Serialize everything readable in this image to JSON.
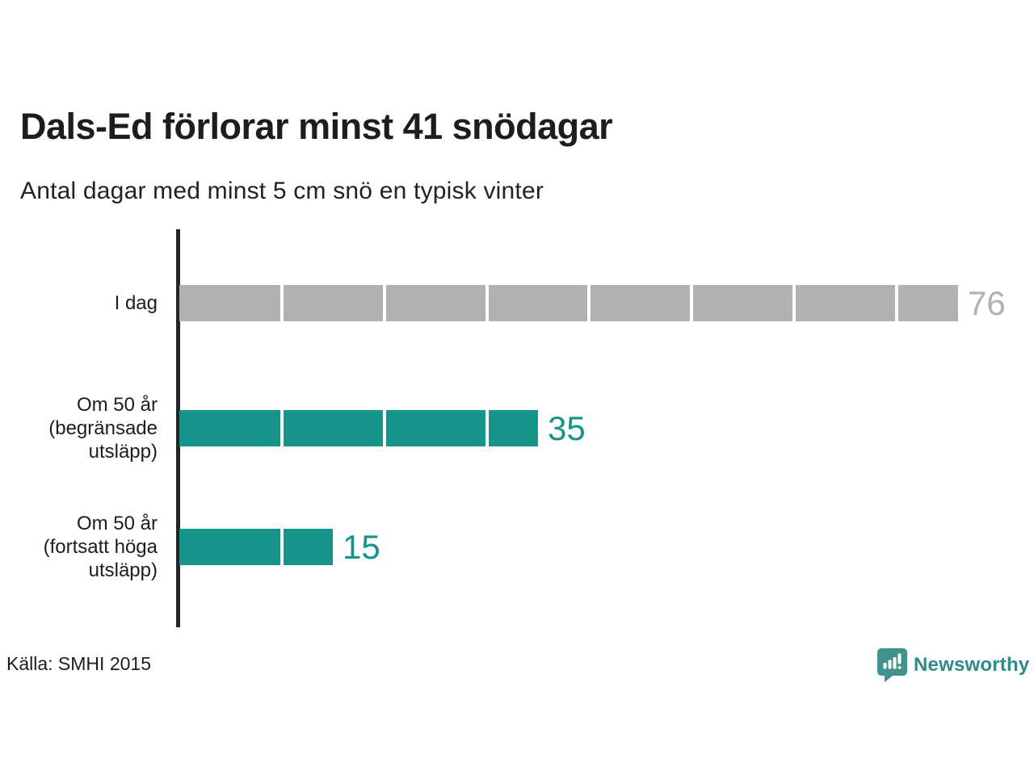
{
  "title": "Dals-Ed förlorar minst 41 snödagar",
  "subtitle": "Antal dagar med minst 5 cm snö en typisk vinter",
  "source": "Källa: SMHI 2015",
  "branding": {
    "name": "Newsworthy",
    "icon": "newsworthy-speech-bubble-bar-chart-icon",
    "icon_color": "#3f938c",
    "text_color": "#2e8b85"
  },
  "colors": {
    "bar_gray": "#b1b1b1",
    "bar_teal": "#17948a",
    "axis": "#252525",
    "text_dark": "#1d1d1d",
    "segment_divider": "#ffffff"
  },
  "chart_data": {
    "type": "bar",
    "orientation": "horizontal",
    "title": "Dals-Ed förlorar minst 41 snödagar",
    "subtitle": "Antal dagar med minst 5 cm snö en typisk vinter",
    "xlabel": "",
    "ylabel": "",
    "xlim": [
      0,
      76
    ],
    "grid": false,
    "legend": "none",
    "segment_interval": 10,
    "categories": [
      "I dag",
      "Om 50 år (begränsade utsläpp)",
      "Om 50 år (fortsatt höga utsläpp)"
    ],
    "display_labels": [
      "I dag",
      "Om 50 år\n(begränsade\nutsläpp)",
      "Om 50 år\n(fortsatt höga\nutsläpp)"
    ],
    "values": [
      76,
      35,
      15
    ],
    "value_labels": [
      "76",
      "35",
      "15"
    ],
    "bar_colors": [
      "#b1b1b1",
      "#17948a",
      "#17948a"
    ]
  }
}
